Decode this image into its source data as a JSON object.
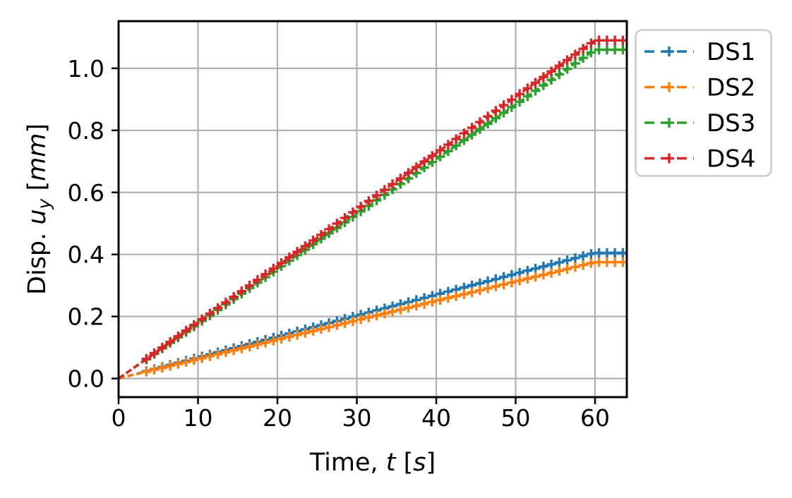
{
  "figure": {
    "background": "#ffffff",
    "title": ""
  },
  "chart_data": {
    "type": "line",
    "title": "",
    "xlabel": "Time, t [s]",
    "ylabel": "Disp. u_y [mm]",
    "xlabel_rich": [
      {
        "t": "Time, ",
        "i": false
      },
      {
        "t": "t",
        "i": true
      },
      {
        "t": " [",
        "i": false
      },
      {
        "t": "s",
        "i": true
      },
      {
        "t": "]",
        "i": false
      }
    ],
    "ylabel_rich": [
      {
        "t": "Disp. ",
        "i": false
      },
      {
        "t": "u",
        "i": true
      },
      {
        "t": "y",
        "i": true,
        "sub": true
      },
      {
        "t": " [",
        "i": false
      },
      {
        "t": "mm",
        "i": true
      },
      {
        "t": "]",
        "i": false
      }
    ],
    "xlim": [
      0,
      64
    ],
    "ylim": [
      -0.06,
      1.152
    ],
    "x_ticks": [
      0,
      10,
      20,
      30,
      40,
      50,
      60
    ],
    "x_tick_labels": [
      "0",
      "10",
      "20",
      "30",
      "40",
      "50",
      "60"
    ],
    "y_ticks": [
      0.0,
      0.2,
      0.4,
      0.6,
      0.8,
      1.0
    ],
    "y_tick_labels": [
      "0.0",
      "0.2",
      "0.4",
      "0.6",
      "0.8",
      "1.0"
    ],
    "grid": true,
    "grid_color": "#b0b0b0",
    "axis_color": "#000000",
    "line_style": "dashed",
    "marker": "plus",
    "marker_t_start": 3.5,
    "marker_t_step": 1.0,
    "marker_t_end": 63.5,
    "ramp_start_t": 0,
    "ramp_end_t": 60,
    "t_end": 64,
    "series": [
      {
        "name": "DS1",
        "color": "#1f77b4",
        "value_at_60s": 0.405,
        "points": [
          [
            0,
            0.0
          ],
          [
            60,
            0.405
          ],
          [
            64,
            0.405
          ]
        ]
      },
      {
        "name": "DS2",
        "color": "#ff7f0e",
        "value_at_60s": 0.375,
        "points": [
          [
            0,
            0.0
          ],
          [
            60,
            0.375
          ],
          [
            64,
            0.375
          ]
        ]
      },
      {
        "name": "DS3",
        "color": "#2ca02c",
        "value_at_60s": 1.06,
        "points": [
          [
            0,
            0.0
          ],
          [
            60,
            1.06
          ],
          [
            64,
            1.06
          ]
        ]
      },
      {
        "name": "DS4",
        "color": "#d62728",
        "value_at_60s": 1.09,
        "points": [
          [
            0,
            0.0
          ],
          [
            60,
            1.09
          ],
          [
            64,
            1.09
          ]
        ]
      }
    ],
    "legend": {
      "labels": [
        "DS1",
        "DS2",
        "DS3",
        "DS4"
      ],
      "position": "outside-upper-right",
      "edge_color": "#cccccc",
      "face_color": "#ffffff"
    }
  }
}
